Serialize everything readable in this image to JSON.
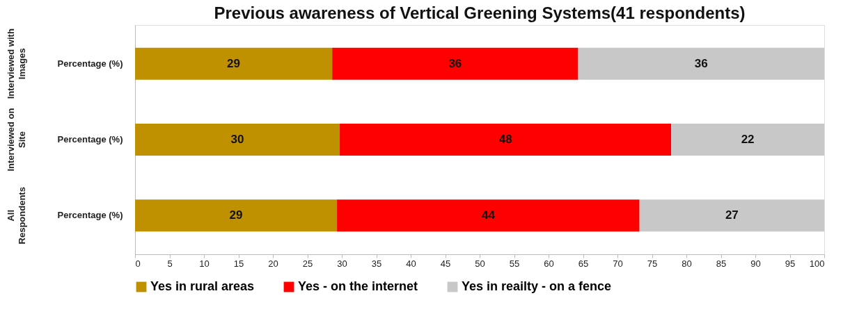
{
  "chart_data": {
    "type": "bar",
    "orientation": "horizontal",
    "stacked": true,
    "title": "Previous awareness of Vertical Greening Systems(41 respondents)",
    "categories": [
      "Percentage (%)",
      "Percentage (%)",
      "Percentage (%)"
    ],
    "annotations": [
      "Interviewed with Images",
      "Interviewed on Site",
      "All Respondents"
    ],
    "series": [
      {
        "name": "Yes in rural areas",
        "color": "#bf9000",
        "values": [
          28.6,
          29.7,
          29.3
        ],
        "value_labels": [
          "29",
          "30",
          "29"
        ]
      },
      {
        "name": "Yes - on the internet",
        "color": "#ff0000",
        "values": [
          35.7,
          48.1,
          43.9
        ],
        "value_labels": [
          "36",
          "48",
          "44"
        ]
      },
      {
        "name": "Yes in reailty - on a fence",
        "color": "#c8c8c8",
        "values": [
          35.7,
          22.2,
          26.8
        ],
        "value_labels": [
          "36",
          "22",
          "27"
        ]
      }
    ],
    "xlim": [
      0,
      100
    ],
    "xticks": [
      0,
      5,
      10,
      15,
      20,
      25,
      30,
      35,
      40,
      45,
      50,
      55,
      60,
      65,
      70,
      75,
      80,
      85,
      90,
      95,
      100
    ],
    "grid": false,
    "legend": "bottom"
  }
}
